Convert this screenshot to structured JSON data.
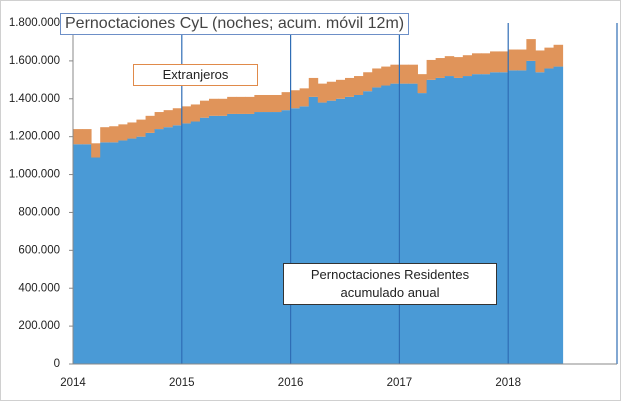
{
  "chart_data": {
    "type": "stacked-step-bar",
    "title": "Pernoctaciones CyL (noches; acum. móvil 12m)",
    "x": [
      2014,
      2014.083,
      2014.167,
      2014.25,
      2014.333,
      2014.417,
      2014.5,
      2014.583,
      2014.667,
      2014.75,
      2014.833,
      2014.917,
      2015,
      2015.083,
      2015.167,
      2015.25,
      2015.333,
      2015.417,
      2015.5,
      2015.583,
      2015.667,
      2015.75,
      2015.833,
      2015.917,
      2016,
      2016.083,
      2016.167,
      2016.25,
      2016.333,
      2016.417,
      2016.5,
      2016.583,
      2016.667,
      2016.75,
      2016.833,
      2016.917,
      2017,
      2017.083,
      2017.167,
      2017.25,
      2017.333,
      2017.417,
      2017.5,
      2017.583,
      2017.667,
      2017.75,
      2017.833,
      2017.917,
      2018,
      2018.083,
      2018.167,
      2018.25,
      2018.333,
      2018.417
    ],
    "series": [
      {
        "name": "Pernoctaciones Residentes acumulado anual",
        "color": "#4a9ad6",
        "values": [
          1160000,
          1160000,
          1090000,
          1170000,
          1170000,
          1180000,
          1190000,
          1200000,
          1220000,
          1240000,
          1250000,
          1260000,
          1270000,
          1280000,
          1300000,
          1310000,
          1310000,
          1320000,
          1320000,
          1320000,
          1330000,
          1330000,
          1330000,
          1340000,
          1350000,
          1360000,
          1410000,
          1380000,
          1390000,
          1400000,
          1410000,
          1420000,
          1440000,
          1460000,
          1470000,
          1480000,
          1480000,
          1480000,
          1430000,
          1500000,
          1510000,
          1520000,
          1510000,
          1520000,
          1530000,
          1530000,
          1540000,
          1540000,
          1550000,
          1550000,
          1600000,
          1540000,
          1560000,
          1570000
        ]
      },
      {
        "name": "Extranjeros",
        "color": "#e0945a",
        "values": [
          80000,
          80000,
          75000,
          80000,
          85000,
          85000,
          85000,
          90000,
          90000,
          90000,
          90000,
          90000,
          90000,
          90000,
          90000,
          90000,
          90000,
          90000,
          90000,
          90000,
          90000,
          90000,
          90000,
          95000,
          95000,
          95000,
          100000,
          100000,
          100000,
          100000,
          100000,
          100000,
          100000,
          100000,
          100000,
          100000,
          100000,
          100000,
          100000,
          105000,
          105000,
          105000,
          110000,
          110000,
          110000,
          110000,
          110000,
          110000,
          110000,
          110000,
          115000,
          115000,
          110000,
          115000
        ]
      }
    ],
    "xlim": [
      2014,
      2019
    ],
    "xticks": [
      2014,
      2015,
      2016,
      2017,
      2018
    ],
    "ylim": [
      0,
      1800000
    ],
    "yticks": [
      0,
      {
        "value": 200000,
        "label": "200.000"
      },
      {
        "value": 400000,
        "label": "400.000"
      },
      {
        "value": 600000,
        "label": "600.000"
      },
      {
        "value": 800000,
        "label": "800.000"
      },
      {
        "value": 1000000,
        "label": "1.000.000"
      },
      {
        "value": 1200000,
        "label": "1.200.000"
      },
      {
        "value": 1400000,
        "label": "1.400.000"
      },
      {
        "value": 1600000,
        "label": "1.600.000"
      },
      {
        "value": 1800000,
        "label": "1.800.000"
      }
    ],
    "grid_color": "#2f6db5"
  }
}
